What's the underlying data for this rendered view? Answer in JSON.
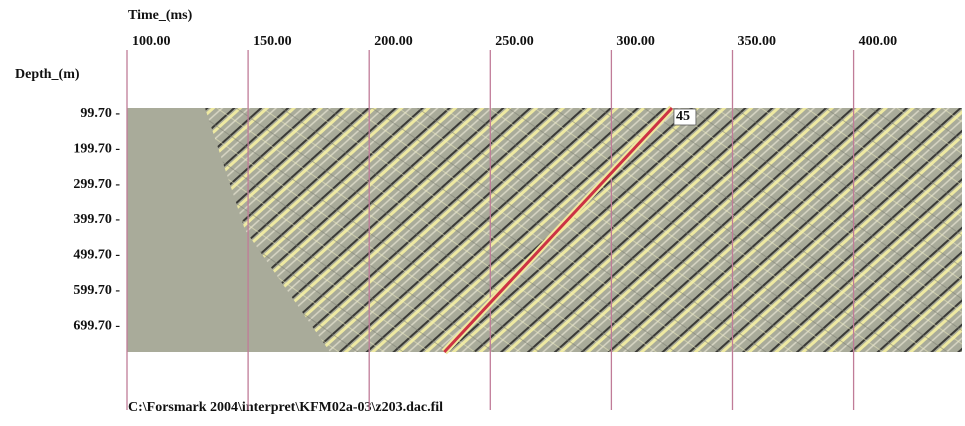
{
  "chart_data": {
    "type": "section",
    "x_label": "Time_(ms)",
    "y_label": "Depth_(m)",
    "caption": "C:\\Forsmark 2004\\interpret\\KFM02a-03\\z203.dac.fil",
    "xlim": [
      100,
      446
    ],
    "xticks": [
      {
        "value": 100,
        "label": "100.00"
      },
      {
        "value": 150,
        "label": "150.00"
      },
      {
        "value": 200,
        "label": "200.00"
      },
      {
        "value": 250,
        "label": "250.00"
      },
      {
        "value": 300,
        "label": "300.00"
      },
      {
        "value": 350,
        "label": "350.00"
      },
      {
        "value": 400,
        "label": "400.00"
      }
    ],
    "ylim": [
      773,
      83
    ],
    "yticks": [
      {
        "value": 99.7,
        "label": "99.70 -"
      },
      {
        "value": 199.7,
        "label": "199.70 -"
      },
      {
        "value": 299.7,
        "label": "299.70 -"
      },
      {
        "value": 399.7,
        "label": "399.70 -"
      },
      {
        "value": 499.7,
        "label": "499.70 -"
      },
      {
        "value": 599.7,
        "label": "599.70 -"
      },
      {
        "value": 699.7,
        "label": "699.70 -"
      }
    ],
    "grid_color": "#c07c98",
    "series": [
      {
        "name": "45",
        "color": "#cc3344",
        "x": [
          231,
          325
        ],
        "y": [
          773,
          83
        ]
      }
    ]
  }
}
